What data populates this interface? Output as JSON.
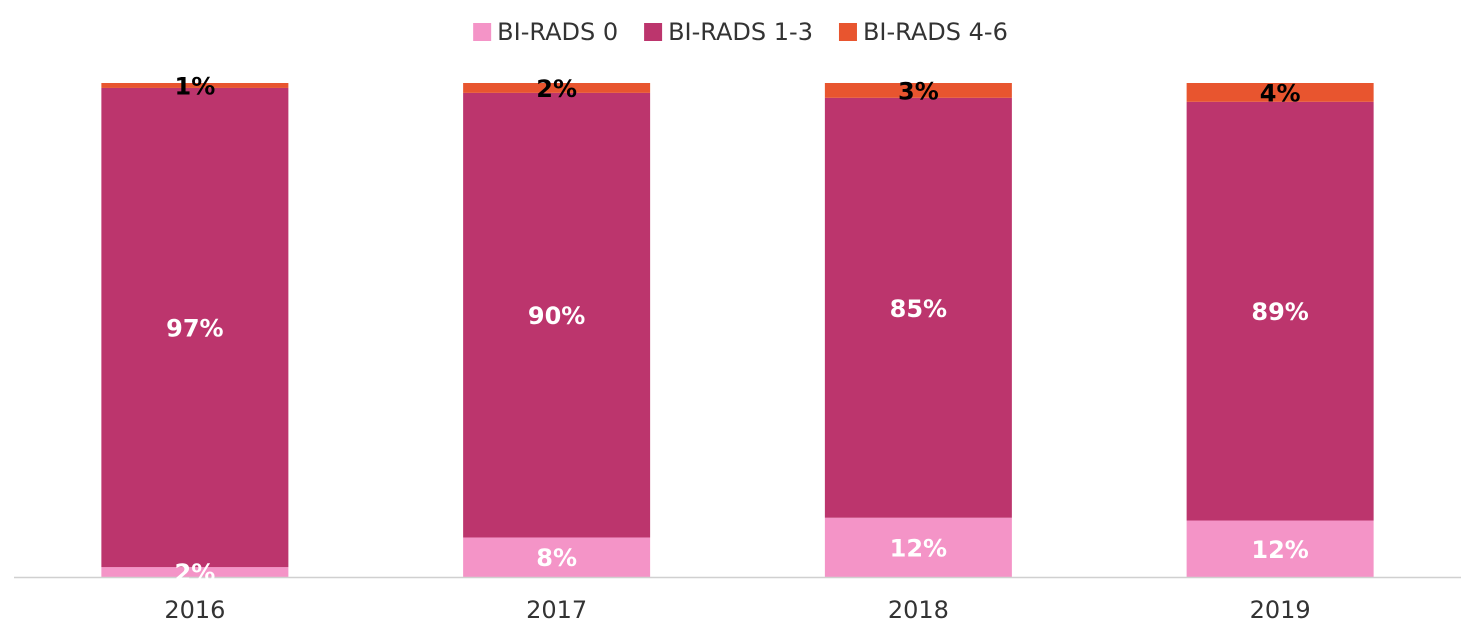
{
  "chart_data": {
    "type": "bar",
    "stack": "percent",
    "legend": "top",
    "categories": [
      "2016",
      "2017",
      "2018",
      "2019"
    ],
    "series": [
      {
        "name": "BI-RADS 0",
        "color": "#f494c7",
        "label_color": "#ffffff",
        "values": [
          2,
          8,
          12,
          12
        ],
        "value_labels": [
          "2%",
          "8%",
          "12%",
          "12%"
        ]
      },
      {
        "name": "BI-RADS 1-3",
        "color": "#bc356d",
        "label_color": "#ffffff",
        "values": [
          97,
          90,
          85,
          89
        ],
        "value_labels": [
          "97%",
          "90%",
          "85%",
          "89%"
        ]
      },
      {
        "name": "BI-RADS 4-6",
        "color": "#e8552f",
        "label_color": "#000000",
        "values": [
          1,
          2,
          3,
          4
        ],
        "value_labels": [
          "1%",
          "2%",
          "3%",
          "4%"
        ]
      }
    ]
  }
}
